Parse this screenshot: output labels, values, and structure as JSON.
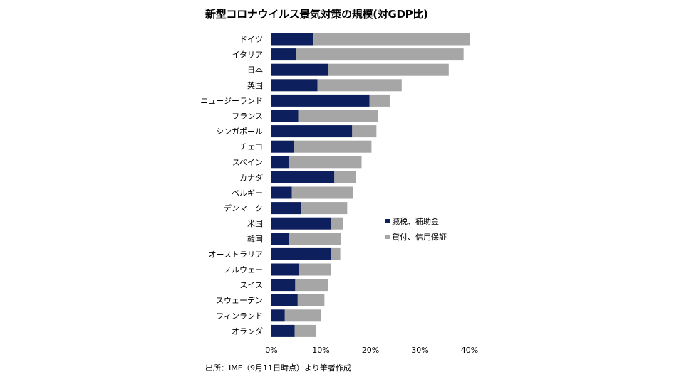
{
  "chart_data": {
    "type": "bar",
    "orientation": "horizontal",
    "stacked": true,
    "title": "新型コロナウイルス景気対策の規模(対GDP比)",
    "source": "出所：IMF（9月11日時点）より筆者作成",
    "xlabel": "",
    "ylabel": "",
    "xlim": [
      0,
      40
    ],
    "tick_values": [
      0,
      10,
      20,
      30,
      40
    ],
    "tick_labels": [
      "0%",
      "10%",
      "20%",
      "30%",
      "40%"
    ],
    "grid": false,
    "legend_position": "right",
    "categories": [
      "ドイツ",
      "イタリア",
      "日本",
      "英国",
      "ニュージーランド",
      "フランス",
      "シンガポール",
      "チェコ",
      "スペイン",
      "カナダ",
      "ベルギー",
      "デンマーク",
      "米国",
      "韓国",
      "オーストラリア",
      "ノルウェー",
      "スイス",
      "スウェーデン",
      "フィンランド",
      "オランダ"
    ],
    "series": [
      {
        "name": "減税、補助金",
        "color": "#0d1f5c",
        "values": [
          8.5,
          5.0,
          11.5,
          9.3,
          19.8,
          5.4,
          16.3,
          4.5,
          3.5,
          12.7,
          4.1,
          6.0,
          12.0,
          3.5,
          12.0,
          5.5,
          4.8,
          5.3,
          2.7,
          4.7
        ]
      },
      {
        "name": "貸付、信用保証",
        "color": "#a6a6a6",
        "values": [
          31.5,
          33.8,
          24.3,
          17.0,
          4.2,
          16.1,
          4.9,
          15.7,
          14.7,
          4.4,
          12.4,
          9.3,
          2.5,
          10.6,
          1.9,
          6.5,
          6.7,
          5.4,
          7.3,
          4.3
        ]
      }
    ]
  }
}
